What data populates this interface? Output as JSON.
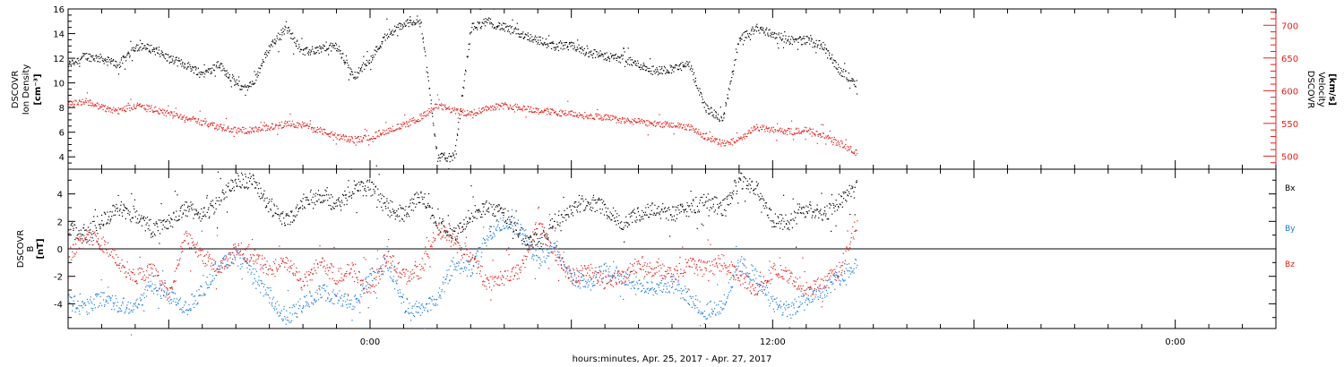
{
  "colors": {
    "black": "#000000",
    "red": "#e0201c",
    "blue": "#1f7ae0"
  },
  "xaxis": {
    "label": "hours:minutes, Apr. 25, 2017 - Apr. 27, 2017",
    "range_hours": [
      -9,
      27
    ],
    "ticks": [
      {
        "h": 0,
        "label": "0:00"
      },
      {
        "h": 12,
        "label": "12:00"
      },
      {
        "h": 24,
        "label": "0:00"
      }
    ],
    "data_end_hours": 14.5
  },
  "chart_data": [
    {
      "type": "scatter",
      "panel": "top",
      "left_axis_label": [
        "DSCOVR",
        "Ion Density",
        "[cm⁻³]"
      ],
      "right_axis_label": [
        "DSCOVR",
        "Velocity",
        "[km/s]"
      ],
      "ylim_left": [
        3,
        16
      ],
      "ylim_right": [
        480,
        725
      ],
      "yticks_left": [
        4,
        6,
        8,
        10,
        12,
        14,
        16
      ],
      "yticks_right": [
        500,
        550,
        600,
        650,
        700
      ],
      "series": [
        {
          "key": "density",
          "axis": "left",
          "color": "black",
          "x": [
            -9,
            -8.5,
            -8,
            -7.5,
            -7,
            -6.5,
            -6,
            -5.5,
            -5,
            -4.5,
            -4,
            -3.7,
            -3.5,
            -3,
            -2.5,
            -2,
            -1.5,
            -1,
            -0.5,
            0,
            0.5,
            1,
            1.5,
            2,
            2.2,
            2.5,
            3,
            3.5,
            4,
            4.5,
            5,
            5.5,
            6,
            6.5,
            7,
            7.5,
            8,
            8.5,
            9,
            9.5,
            10,
            10.5,
            11,
            11.5,
            12,
            12.5,
            13,
            13.5,
            14,
            14.5
          ],
          "y": [
            11.5,
            12.2,
            12.0,
            11.5,
            13.0,
            12.8,
            12.0,
            11.5,
            10.8,
            11.5,
            10.0,
            9.5,
            10.0,
            13.0,
            14.5,
            12.5,
            12.8,
            13.0,
            10.5,
            12.0,
            14.0,
            14.8,
            15.2,
            4.0,
            4.0,
            4.0,
            14.5,
            15.0,
            14.5,
            14.0,
            13.5,
            13.0,
            13.0,
            12.5,
            12.2,
            12.0,
            11.5,
            11.0,
            11.2,
            11.5,
            8.0,
            7.0,
            13.5,
            14.5,
            14.0,
            13.5,
            13.5,
            13.0,
            11.0,
            10.0
          ]
        },
        {
          "key": "velocity",
          "axis": "right",
          "color": "red",
          "x": [
            -9,
            -8.5,
            -8,
            -7.5,
            -7,
            -6.5,
            -6,
            -5.5,
            -5,
            -4.5,
            -4,
            -3.5,
            -3,
            -2.5,
            -2,
            -1.5,
            -1,
            -0.5,
            0,
            0.5,
            1,
            1.5,
            2,
            2.5,
            3,
            3.5,
            4,
            4.5,
            5,
            5.5,
            6,
            6.5,
            7,
            7.5,
            8,
            8.5,
            9,
            9.5,
            10,
            10.5,
            11,
            11.5,
            12,
            12.5,
            13,
            13.5,
            14,
            14.5
          ],
          "y": [
            580,
            585,
            575,
            570,
            578,
            573,
            565,
            560,
            552,
            545,
            540,
            540,
            545,
            550,
            548,
            540,
            530,
            525,
            530,
            540,
            548,
            560,
            578,
            570,
            565,
            575,
            578,
            575,
            570,
            568,
            565,
            562,
            560,
            555,
            553,
            550,
            548,
            545,
            530,
            520,
            525,
            545,
            540,
            538,
            540,
            533,
            520,
            505
          ]
        }
      ]
    },
    {
      "type": "scatter",
      "panel": "bottom",
      "left_axis_label": [
        "DSCOVR",
        "B",
        "[nT]"
      ],
      "ylim": [
        -5.8,
        5.8
      ],
      "yticks": [
        -4,
        -2,
        0,
        2,
        4
      ],
      "zero_line": true,
      "series": [
        {
          "name": "Bx",
          "color": "black",
          "x": [
            -9,
            -8.5,
            -8,
            -7.5,
            -7,
            -6.5,
            -6,
            -5.5,
            -5,
            -4.5,
            -4,
            -3.5,
            -3,
            -2.5,
            -2,
            -1.5,
            -1,
            -0.5,
            0,
            0.5,
            1,
            1.5,
            2,
            2.5,
            3,
            3.5,
            4,
            4.5,
            5,
            5.5,
            6,
            6.5,
            7,
            7.5,
            8,
            8.5,
            9,
            9.5,
            10,
            10.5,
            11,
            11.5,
            12,
            12.5,
            13,
            13.5,
            14,
            14.5
          ],
          "y": [
            1.5,
            1.0,
            2.0,
            3.0,
            2.5,
            1.5,
            2.0,
            3.0,
            2.5,
            3.5,
            5.0,
            5.0,
            3.0,
            2.0,
            3.5,
            4.0,
            3.0,
            4.5,
            4.5,
            3.0,
            2.5,
            4.0,
            2.0,
            1.0,
            2.5,
            3.0,
            2.5,
            1.0,
            0.5,
            2.0,
            3.0,
            3.5,
            3.0,
            2.0,
            2.5,
            3.0,
            2.5,
            3.0,
            3.5,
            3.0,
            5.0,
            4.5,
            2.0,
            2.0,
            3.0,
            2.5,
            3.5,
            4.5
          ]
        },
        {
          "name": "By",
          "color": "blue",
          "x": [
            -9,
            -8.5,
            -8,
            -7.5,
            -7,
            -6.5,
            -6,
            -5.5,
            -5,
            -4.5,
            -4,
            -3.5,
            -3,
            -2.5,
            -2,
            -1.5,
            -1,
            -0.5,
            0,
            0.5,
            1,
            1.5,
            2,
            2.5,
            3,
            3.5,
            4,
            4.5,
            5,
            5.5,
            6,
            6.5,
            7,
            7.5,
            8,
            8.5,
            9,
            9.5,
            10,
            10.5,
            11,
            11.5,
            12,
            12.5,
            13,
            13.5,
            14,
            14.5
          ],
          "y": [
            -3.8,
            -4.3,
            -3.5,
            -4.0,
            -4.2,
            -2.5,
            -3.5,
            -4.3,
            -3.0,
            -1.0,
            -0.5,
            -2.0,
            -3.5,
            -5.0,
            -4.0,
            -3.0,
            -3.5,
            -4.0,
            -2.0,
            -1.0,
            -4.0,
            -4.5,
            -3.5,
            -1.0,
            -1.5,
            1.0,
            2.0,
            1.5,
            -1.0,
            0.5,
            -2.0,
            -2.5,
            -1.5,
            -2.0,
            -2.5,
            -3.0,
            -2.5,
            -3.5,
            -4.5,
            -4.0,
            -1.0,
            -2.0,
            -4.0,
            -4.5,
            -3.5,
            -3.0,
            -2.0,
            -1.0
          ]
        },
        {
          "name": "Bz",
          "color": "red",
          "x": [
            -9,
            -8.5,
            -8,
            -7.5,
            -7,
            -6.5,
            -6,
            -5.5,
            -5,
            -4.5,
            -4,
            -3.5,
            -3,
            -2.5,
            -2,
            -1.5,
            -1,
            -0.5,
            0,
            0.5,
            1,
            1.5,
            2,
            2.5,
            3,
            3.5,
            4,
            4.5,
            5,
            5.5,
            6,
            6.5,
            7,
            7.5,
            8,
            8.5,
            9,
            9.5,
            10,
            10.5,
            11,
            11.5,
            12,
            12.5,
            13,
            13.5,
            14,
            14.5
          ],
          "y": [
            -0.5,
            1.0,
            0.5,
            -1.0,
            -2.0,
            -1.5,
            -3.5,
            1.0,
            -0.5,
            -1.5,
            0.0,
            -0.5,
            -1.5,
            -1.0,
            -2.5,
            -1.0,
            -2.0,
            -1.5,
            -3.0,
            -0.5,
            -2.0,
            -1.5,
            1.5,
            0.5,
            -0.5,
            -2.5,
            -2.0,
            -1.5,
            2.0,
            -0.5,
            -2.0,
            -1.5,
            -2.5,
            -2.0,
            -1.0,
            -1.5,
            -2.0,
            -1.0,
            -1.5,
            -1.0,
            -2.0,
            -3.0,
            -1.5,
            -2.0,
            -3.0,
            -2.5,
            -1.5,
            2.0
          ]
        }
      ]
    }
  ]
}
